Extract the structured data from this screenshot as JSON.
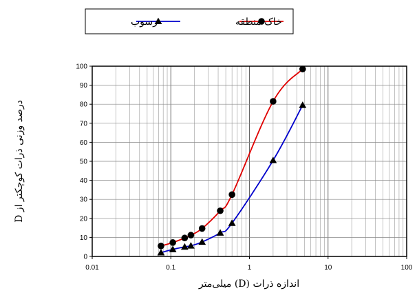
{
  "chart_data": {
    "type": "line",
    "xlabel": "اندازه ذرات (D) میلی‌متر",
    "ylabel": "درصد وزنی ذرات کوچکتر از D",
    "x_scale": "log",
    "xlim": [
      0.01,
      100
    ],
    "ylim": [
      0,
      100
    ],
    "x_ticks": [
      0.01,
      0.1,
      1,
      10,
      100
    ],
    "x_tick_labels": [
      "0.01",
      "0.1",
      "1",
      "10",
      "100"
    ],
    "y_ticks": [
      0,
      10,
      20,
      30,
      40,
      50,
      60,
      70,
      80,
      90,
      100
    ],
    "y_tick_labels": [
      "0",
      "10",
      "20",
      "30",
      "40",
      "50",
      "60",
      "70",
      "80",
      "90",
      "100"
    ],
    "grid": true,
    "legend_position": "top-center",
    "series": [
      {
        "name": "خاک منطقه",
        "color": "#e00000",
        "marker": "circle",
        "x": [
          0.075,
          0.106,
          0.15,
          0.18,
          0.25,
          0.425,
          0.6,
          2.0,
          4.75
        ],
        "y": [
          5.5,
          7.3,
          9.7,
          11.2,
          14.7,
          24.0,
          32.5,
          81.5,
          98.5
        ]
      },
      {
        "name": "رسوب",
        "color": "#0000cc",
        "marker": "triangle",
        "x": [
          0.075,
          0.106,
          0.15,
          0.18,
          0.25,
          0.425,
          0.6,
          2.0,
          4.75
        ],
        "y": [
          2.0,
          3.7,
          5.0,
          5.6,
          7.6,
          12.4,
          17.5,
          50.5,
          79.5
        ]
      }
    ]
  }
}
